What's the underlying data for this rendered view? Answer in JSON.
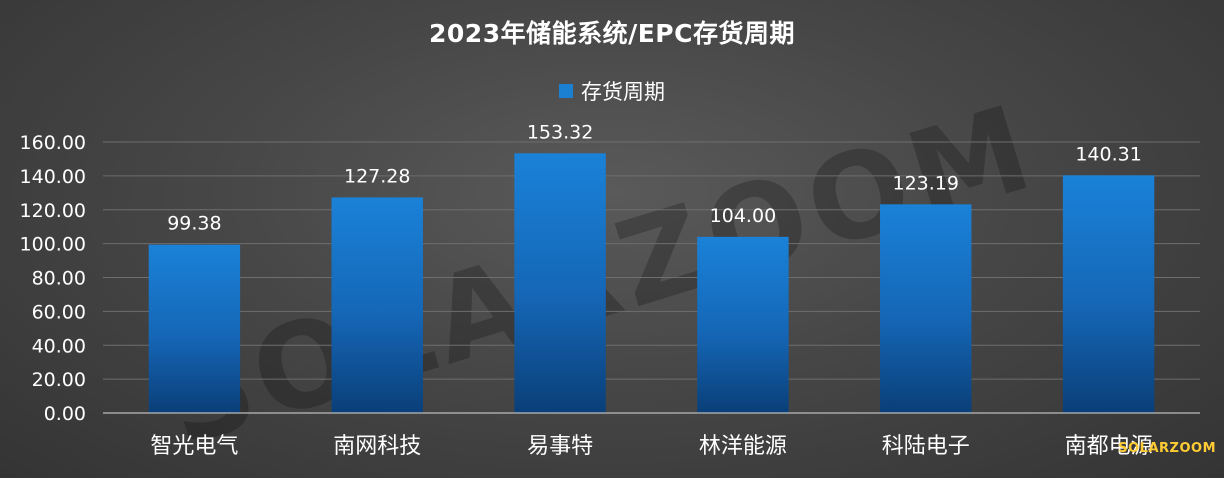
{
  "chart_data": {
    "type": "bar",
    "title": "2023年储能系统/EPC存货周期",
    "categories": [
      "智光电气",
      "南网科技",
      "易事特",
      "林洋能源",
      "科陆电子",
      "南都电源"
    ],
    "series": [
      {
        "name": "存货周期",
        "values": [
          99.38,
          127.28,
          153.32,
          104.0,
          123.19,
          140.31
        ]
      }
    ],
    "data_labels": [
      "99.38",
      "127.28",
      "153.32",
      "104.00",
      "123.19",
      "140.31"
    ],
    "ylim": [
      0,
      160
    ],
    "yticks": [
      "0.00",
      "20.00",
      "40.00",
      "60.00",
      "80.00",
      "100.00",
      "120.00",
      "140.00",
      "160.00"
    ],
    "grid": true,
    "legend_position": "top-center"
  },
  "watermark": "SOLARZOOM",
  "corner_mark": "SOLARZOOM",
  "colors": {
    "bar_top": "#1a82d8",
    "bar_bottom": "#0a3f78",
    "background": "#474747",
    "text": "#ffffff"
  }
}
